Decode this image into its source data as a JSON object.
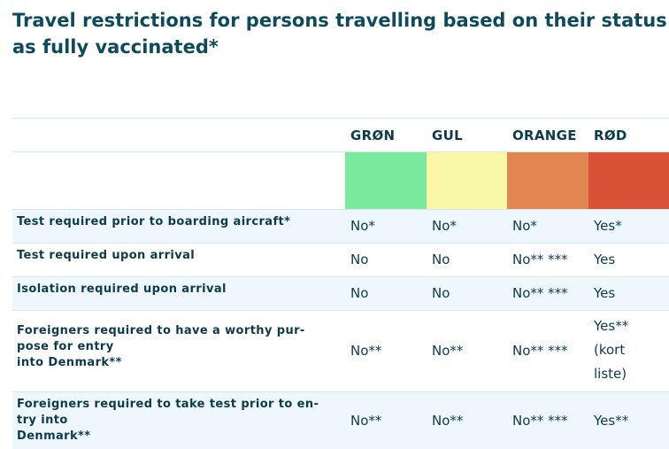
{
  "title": "Travel restrictions for persons travelling based on their status as fully vaccinated*",
  "columns": [
    {
      "label": "GRØN",
      "color": "#7bea9f"
    },
    {
      "label": "GUL",
      "color": "#f9f8a7"
    },
    {
      "label": "ORANGE",
      "color": "#e08650"
    },
    {
      "label": "RØD",
      "color": "#d95136"
    }
  ],
  "rows": [
    {
      "label": "Test required prior to boarding aircraft*",
      "values": [
        "No*",
        "No*",
        "No*",
        "Yes*"
      ]
    },
    {
      "label": "Test required upon arrival",
      "values": [
        "No",
        "No",
        "No** ***",
        "Yes"
      ]
    },
    {
      "label": "Isolation required upon arrival",
      "values": [
        "No",
        "No",
        "No** ***",
        "Yes"
      ]
    },
    {
      "label_lines": [
        "Foreigners required to have a worthy pur-",
        "pose for entry",
        "into Denmark**"
      ],
      "values": [
        "No**",
        "No**",
        "No** ***"
      ],
      "value_lines_last": [
        "Yes**",
        "(kort",
        "liste)"
      ]
    },
    {
      "label_lines": [
        "Foreigners required to take test prior to en-",
        "try into",
        "Denmark**"
      ],
      "values": [
        "No**",
        "No**",
        "No** ***",
        "Yes**"
      ]
    }
  ]
}
